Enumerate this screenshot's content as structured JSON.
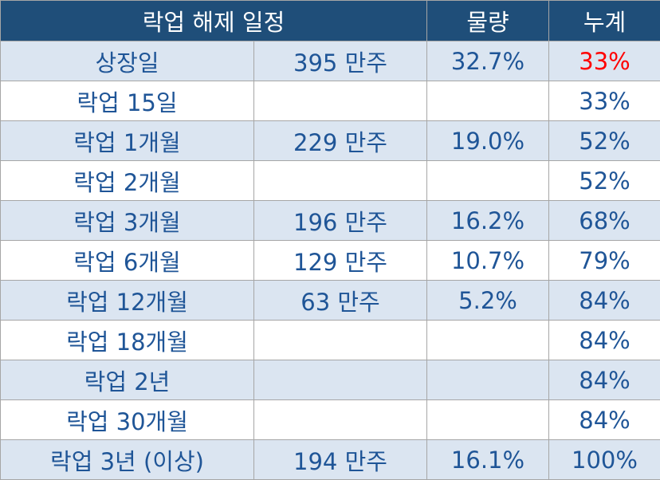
{
  "table": {
    "header": [
      "락업 해제 일정",
      "물량",
      "누계"
    ],
    "rows": [
      [
        "상장일",
        "395 만주",
        "32.7%",
        "33%"
      ],
      [
        "락업 15일",
        null,
        null,
        "33%"
      ],
      [
        "락업 1개월",
        "229 만주",
        "19.0%",
        "52%"
      ],
      [
        "락업 2개월",
        null,
        null,
        "52%"
      ],
      [
        "락업 3개월",
        "196 만주",
        "16.2%",
        "68%"
      ],
      [
        "락업 6개월",
        "129 만주",
        "10.7%",
        "79%"
      ],
      [
        "락업 12개월",
        "63 만주",
        "5.2%",
        "84%"
      ],
      [
        "락업 18개월",
        null,
        null,
        "84%"
      ],
      [
        "락업 2년",
        null,
        null,
        "84%"
      ],
      [
        "락업 30개월",
        null,
        null,
        "84%"
      ],
      [
        "락업 3년 (이상)",
        "194 만주",
        "16.1%",
        "100%"
      ]
    ]
  }
}
